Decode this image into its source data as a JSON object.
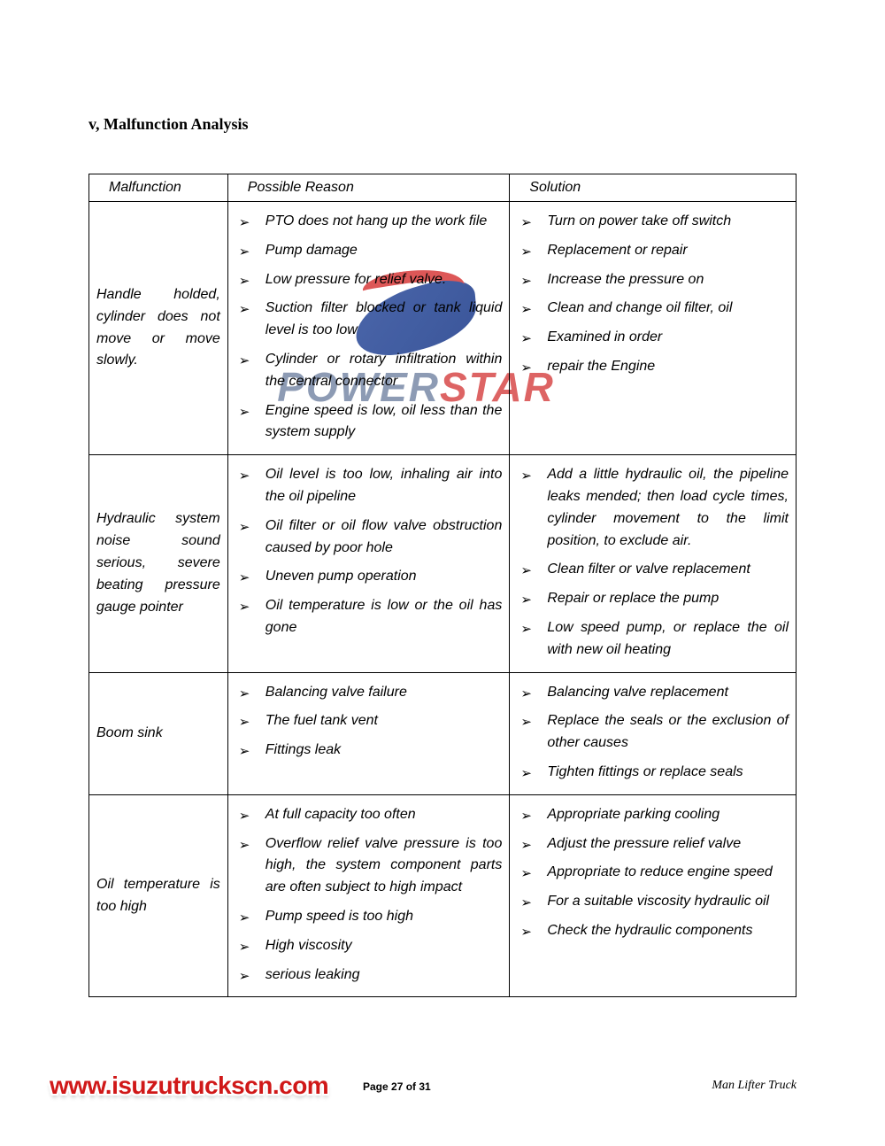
{
  "section": {
    "roman": "v",
    "title": ", Malfunction Analysis"
  },
  "table": {
    "headers": {
      "malfunction": "Malfunction",
      "reason": "Possible Reason",
      "solution": "Solution"
    },
    "rows": [
      {
        "malfunction": "Handle holded, cylinder does not move or move slowly.",
        "reasons": [
          "PTO does not hang up the work file",
          "Pump damage",
          "Low pressure for relief valve.",
          "Suction filter blocked or tank liquid level is too low",
          "Cylinder or rotary infiltration within the central connector",
          "Engine speed is low, oil less than the system supply"
        ],
        "solutions": [
          "Turn on power take off switch",
          "Replacement or repair",
          "Increase the pressure on",
          "Clean and change oil filter, oil",
          "Examined in order",
          "repair the Engine"
        ]
      },
      {
        "malfunction": "Hydraulic system noise sound serious, severe beating pressure gauge pointer",
        "reasons": [
          "Oil level is too low, inhaling air into the oil pipeline",
          "Oil filter or oil flow valve obstruction caused by poor hole",
          "Uneven pump operation",
          "Oil temperature is low or the oil has gone"
        ],
        "solutions": [
          "Add a little hydraulic oil, the pipeline leaks mended; then load cycle times, cylinder movement to the limit position, to exclude air.",
          "Clean filter or valve replacement",
          "Repair or replace the pump",
          "Low speed pump, or replace the oil with new oil heating"
        ]
      },
      {
        "malfunction": "Boom sink",
        "reasons": [
          "Balancing valve failure",
          "The fuel tank vent",
          "Fittings leak"
        ],
        "solutions": [
          "Balancing valve replacement",
          "Replace the seals or the exclusion of other causes",
          "Tighten fittings or replace seals"
        ]
      },
      {
        "malfunction": "Oil temperature is too high",
        "reasons": [
          "At full capacity too often",
          "Overflow relief valve pressure is too high, the system component parts are often subject to high impact",
          "Pump speed is too high",
          "High viscosity",
          "serious leaking"
        ],
        "solutions": [
          "Appropriate parking cooling",
          "Adjust the pressure relief valve",
          "Appropriate to reduce engine speed",
          "For a suitable viscosity hydraulic oil",
          "Check the hydraulic components"
        ]
      }
    ]
  },
  "watermark": {
    "text_a": "POWER",
    "text_b": "STAR",
    "blue": "#2a4a9a",
    "red": "#d83a3a",
    "gray": "#7a8aa8"
  },
  "footer": {
    "url": "www.isuzutruckscn.com",
    "page": "Page 27 of  31",
    "doc": "Man Lifter Truck"
  },
  "style": {
    "text_color": "#000000",
    "bg": "#ffffff",
    "border": "#000000",
    "url_red": "#d01818"
  }
}
